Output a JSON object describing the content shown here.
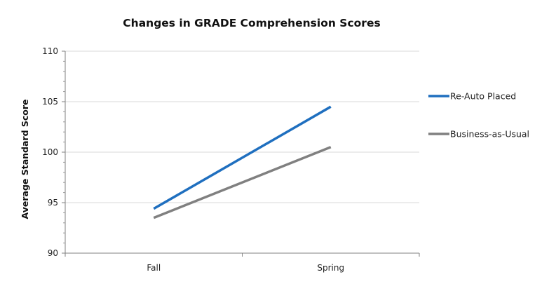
{
  "chart_data": {
    "type": "line",
    "title": "Changes in GRADE Comprehension Scores",
    "xlabel": "",
    "ylabel": "Average Standard Score",
    "categories": [
      "Fall",
      "Spring"
    ],
    "ylim": [
      90,
      110
    ],
    "yticks": [
      90,
      95,
      100,
      105,
      110
    ],
    "grid": true,
    "legend_position": "right",
    "series": [
      {
        "name": "Re-Auto Placed",
        "values": [
          94.4,
          104.5
        ],
        "color": "#1f6fbf"
      },
      {
        "name": "Business-as-Usual",
        "values": [
          93.5,
          100.5
        ],
        "color": "#808080"
      }
    ]
  }
}
